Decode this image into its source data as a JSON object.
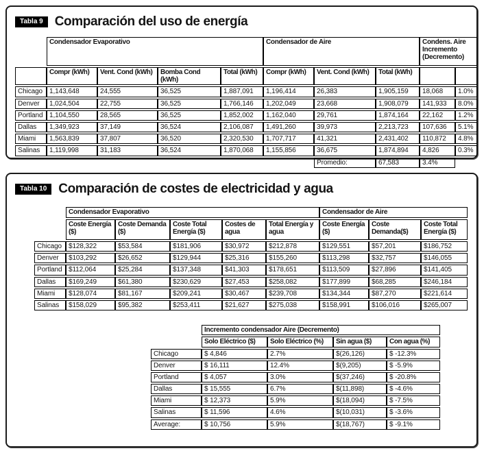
{
  "table9": {
    "badge": "Tabla 9",
    "title": "Comparación del uso de energía",
    "groups": [
      "Condensador Evaporativo",
      "Condensador de Aire",
      "Condens. Aire Incremento (Decremento)"
    ],
    "headers": [
      "Compr (kWh)",
      "Vent. Cond (kWh)",
      "Bomba Cond (kWh)",
      "Total (kWh)",
      "Compr (kWh)",
      "Vent. Cond (kWh)",
      "Total (kWh)"
    ],
    "rows": [
      [
        "Chicago",
        "1,143,648",
        "24,555",
        "36,525",
        "1,887,091",
        "1,196,414",
        "26,383",
        "1,905,159",
        "18,068",
        "1.0%"
      ],
      [
        "Denver",
        "1,024,504",
        "22,755",
        "36,525",
        "1,766,146",
        "1,202,049",
        "23,668",
        "1,908,079",
        "141,933",
        "8.0%"
      ],
      [
        "Portland",
        "1,104,550",
        "28,565",
        "36,525",
        "1,852,002",
        "1,162,040",
        "29,761",
        "1,874,164",
        "22,162",
        "1.2%"
      ],
      [
        "Dallas",
        "1,349,923",
        "37,149",
        "36,524",
        "2,106,087",
        "1,491,260",
        "39,973",
        "2,213,723",
        "107,636",
        "5.1%"
      ],
      [
        "Miami",
        "1,563,839",
        "37,807",
        "36,520",
        "2,320,530",
        "1,707,717",
        "41,321",
        "2,431,402",
        "110,872",
        "4.8%"
      ],
      [
        "Salinas",
        "1,119,998",
        "31,183",
        "36,524",
        "1,870,068",
        "1,155,856",
        "36,675",
        "1,874,894",
        "4,826",
        "0.3%"
      ]
    ],
    "footer": {
      "label": "Promedio:",
      "value": "67,583",
      "pct": "3.4%"
    }
  },
  "table10": {
    "badge": "Tabla 10",
    "title": "Comparación de costes de electricidad y agua",
    "groups": [
      "Condensador Evaporativo",
      "Condensador de Aire"
    ],
    "headers": [
      "Coste Energía ($)",
      "Coste Demanda ($)",
      "Coste Total Energía ($)",
      "Costes de agua",
      "Total Energía y agua",
      "Coste Energía ($)",
      "Coste Demanda($)",
      "Coste Total Energía ($)"
    ],
    "rows": [
      [
        "Chicago",
        "$128,322",
        "$53,584",
        "$181,906",
        "$30,972",
        "$212,878",
        "$129,551",
        "$57,201",
        "$186,752"
      ],
      [
        "Denver",
        "$103,292",
        "$26,652",
        "$129,944",
        "$25,316",
        "$155,260",
        "$113,298",
        "$32,757",
        "$146,055"
      ],
      [
        "Portland",
        "$112,064",
        "$25,284",
        "$137,348",
        "$41,303",
        "$178,651",
        "$113,509",
        "$27,896",
        "$141,405"
      ],
      [
        "Dallas",
        "$169,249",
        "$61,380",
        "$230,629",
        "$27,453",
        "$258,082",
        "$177,899",
        "$68,285",
        "$246,184"
      ],
      [
        "Miami",
        "$128,074",
        "$81,167",
        "$209,241",
        "$30,467",
        "$239,708",
        "$134,344",
        "$87,270",
        "$221,614"
      ],
      [
        "Salinas",
        "$158,029",
        "$95,382",
        "$253,411",
        "$21,627",
        "$275,038",
        "$158,991",
        "$106,016",
        "$265,007"
      ]
    ],
    "increment": {
      "group": "Incremento condensador Aire (Decremento)",
      "headers": [
        "Solo Eléctrico ($)",
        "Solo Eléctrico (%)",
        "Sin agua ($)",
        "Con agua (%)"
      ],
      "rows": [
        [
          "Chicago",
          "$ 4,846",
          "2.7%",
          "$(26,126)",
          "$ -12.3%"
        ],
        [
          "Denver",
          "$ 16,111",
          "12.4%",
          "$(9,205)",
          "$ -5.9%"
        ],
        [
          "Portland",
          "$ 4,057",
          "3.0%",
          "$(37,246)",
          "$ -20.8%"
        ],
        [
          "Dallas",
          "$ 15,555",
          "6.7%",
          "$(11,898)",
          "$ -4.6%"
        ],
        [
          "Miami",
          "$ 12,373",
          "5.9%",
          "$(18,094)",
          "$ -7.5%"
        ],
        [
          "Salinas",
          "$ 11,596",
          "4.6%",
          "$(10,031)",
          "$ -3.6%"
        ],
        [
          "Average:",
          "$ 10,756",
          "5.9%",
          "$(18,767)",
          "$ -9.1%"
        ]
      ]
    }
  }
}
